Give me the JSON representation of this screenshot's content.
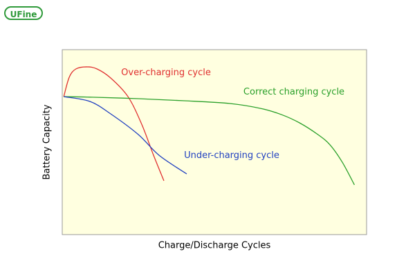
{
  "logo": "UFine",
  "chart_data": {
    "type": "line",
    "x_label": "Charge/Discharge Cycles",
    "y_label": "Battery Capacity",
    "xlim": [
      0,
      100
    ],
    "ylim": [
      0,
      100
    ],
    "series": [
      {
        "name": "Over-charging cycle",
        "color": "#e03030",
        "x": [
          0.5,
          2.3,
          4.5,
          8,
          11.4,
          15.9,
          21.6,
          26.1,
          30,
          33.4
        ],
        "values": [
          74.6,
          85.1,
          89.6,
          90.7,
          89.6,
          84.7,
          74.6,
          59.7,
          42.9,
          29.1
        ]
      },
      {
        "name": "Correct charging cycle",
        "color": "#2aa02a",
        "x": [
          0.5,
          10,
          25,
          40,
          55,
          65,
          72,
          78,
          84,
          88,
          92,
          96
        ],
        "values": [
          74.6,
          74.3,
          73.5,
          72.4,
          70.9,
          68.3,
          64.9,
          60.4,
          54.1,
          48.5,
          39.2,
          26.9
        ]
      },
      {
        "name": "Under-charging cycle",
        "color": "#2040c0",
        "x": [
          0.5,
          9.1,
          15.9,
          25,
          31.8,
          40.9
        ],
        "values": [
          74.6,
          72.0,
          65.3,
          54.1,
          42.9,
          32.8
        ]
      }
    ]
  }
}
